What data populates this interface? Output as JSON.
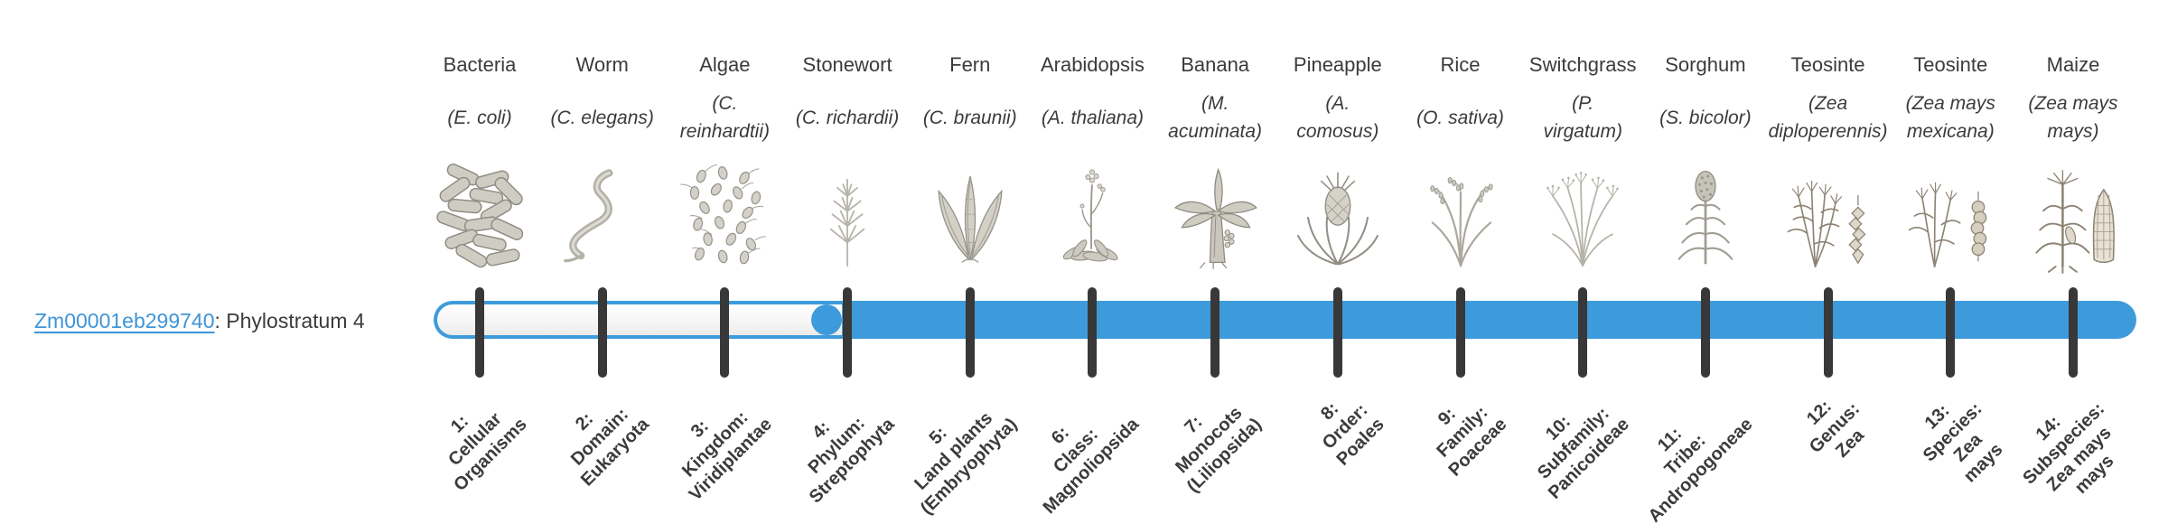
{
  "gene": {
    "id": "Zm00001eb299740",
    "suffix": ": Phylostratum 4",
    "phylostratum": 4
  },
  "timeline": {
    "strata_count": 14,
    "filled_from_stratum": 4,
    "fill_color": "#3e9bdb",
    "track_unfilled_color": "#ffffff",
    "tick_color": "#383838",
    "link_color": "#3e95d9",
    "text_color": "#3b3b3b"
  },
  "columns": [
    {
      "name": "Bacteria",
      "species": "(E. coli)",
      "stratum": "1:\nCellular\nOrganisms",
      "icon": "bacteria"
    },
    {
      "name": "Worm",
      "species": "(C. elegans)",
      "stratum": "2:\nDomain:\nEukaryota",
      "icon": "worm"
    },
    {
      "name": "Algae",
      "species": "(C.\nreinhardtii)",
      "stratum": "3:\nKingdom:\nViridiplantae",
      "icon": "algae"
    },
    {
      "name": "Stonewort",
      "species": "(C. richardii)",
      "stratum": "4:\nPhylum:\nStreptophyta",
      "icon": "stonewort"
    },
    {
      "name": "Fern",
      "species": "(C. braunii)",
      "stratum": "5:\nLand plants\n(Embryophyta)",
      "icon": "fern"
    },
    {
      "name": "Arabidopsis",
      "species": "(A. thaliana)",
      "stratum": "6:\nClass:\nMagnoliopsida",
      "icon": "arabidopsis"
    },
    {
      "name": "Banana",
      "species": "(M.\nacuminata)",
      "stratum": "7:\nMonocots\n(Liliopsida)",
      "icon": "banana"
    },
    {
      "name": "Pineapple",
      "species": "(A.\ncomosus)",
      "stratum": "8:\nOrder:\nPoales",
      "icon": "pineapple"
    },
    {
      "name": "Rice",
      "species": "(O. sativa)",
      "stratum": "9:\nFamily:\nPoaceae",
      "icon": "rice"
    },
    {
      "name": "Switchgrass",
      "species": "(P.\nvirgatum)",
      "stratum": "10:\nSubfamily:\nPanicoideae",
      "icon": "switchgrass"
    },
    {
      "name": "Sorghum",
      "species": "(S. bicolor)",
      "stratum": "11:\nTribe:\nAndropogoneae",
      "icon": "sorghum"
    },
    {
      "name": "Teosinte",
      "species": "(Zea\ndiploperennis)",
      "stratum": "12:\nGenus:\nZea",
      "icon": "teosinte-diploperennis"
    },
    {
      "name": "Teosinte",
      "species": "(Zea mays\nmexicana)",
      "stratum": "13:\nSpecies:\nZea\nmays",
      "icon": "teosinte-mexicana"
    },
    {
      "name": "Maize",
      "species": "(Zea mays\nmays)",
      "stratum": "14:\nSubspecies:\nZea mays\nmays",
      "icon": "maize"
    }
  ]
}
